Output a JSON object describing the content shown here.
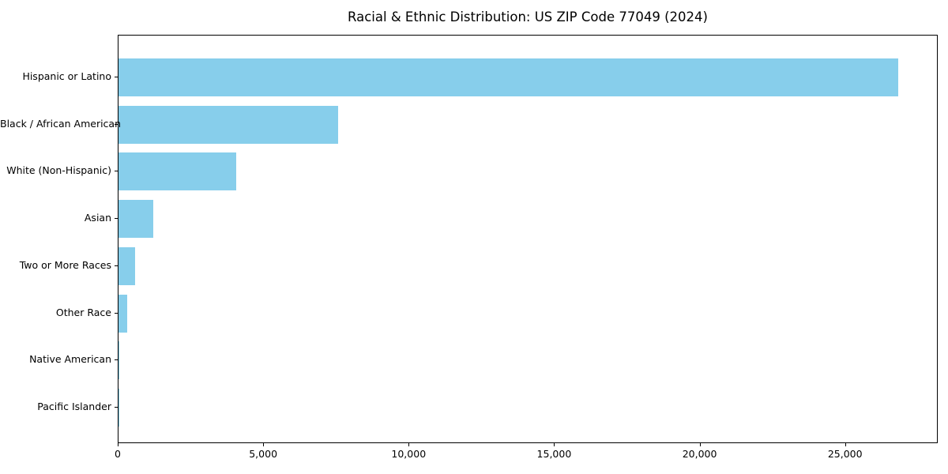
{
  "chart_data": {
    "type": "bar",
    "orientation": "horizontal",
    "title": "Racial & Ethnic Distribution: US ZIP Code 77049 (2024)",
    "categories": [
      "Hispanic or Latino",
      "Black / African American",
      "White (Non-Hispanic)",
      "Asian",
      "Two or More Races",
      "Other Race",
      "Native American",
      "Pacific Islander"
    ],
    "values": [
      26790,
      7560,
      4040,
      1190,
      570,
      300,
      30,
      10
    ],
    "xlabel": "",
    "ylabel": "",
    "xlim": [
      0,
      28130
    ],
    "xticks": [
      0,
      5000,
      10000,
      15000,
      20000,
      25000
    ],
    "xtick_labels": [
      "0",
      "5,000",
      "10,000",
      "15,000",
      "20,000",
      "25,000"
    ],
    "bar_color": "#87CEEB",
    "background_color": "#ffffff",
    "spine_color": "#000000",
    "grid": false,
    "legend_position": "none"
  }
}
